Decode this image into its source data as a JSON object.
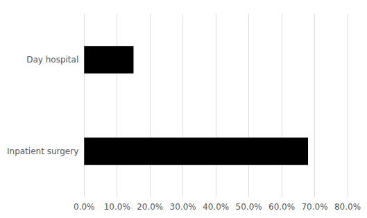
{
  "chart_data": {
    "type": "bar",
    "orientation": "horizontal",
    "categories": [
      "Inpatient surgery",
      "Day hospital"
    ],
    "values": [
      0.68,
      0.15
    ],
    "color": "#000000",
    "xlim": [
      0,
      0.8
    ],
    "xticks": [
      {
        "value": 0.0,
        "label": "0.0%"
      },
      {
        "value": 0.1,
        "label": "10.0%"
      },
      {
        "value": 0.2,
        "label": "20.0%"
      },
      {
        "value": 0.3,
        "label": "30.0%"
      },
      {
        "value": 0.4,
        "label": "40.0%"
      },
      {
        "value": 0.5,
        "label": "50.0%"
      },
      {
        "value": 0.6,
        "label": "60.0%"
      },
      {
        "value": 0.7,
        "label": "70.0%"
      },
      {
        "value": 0.8,
        "label": "80.0%"
      }
    ],
    "grid": true
  }
}
